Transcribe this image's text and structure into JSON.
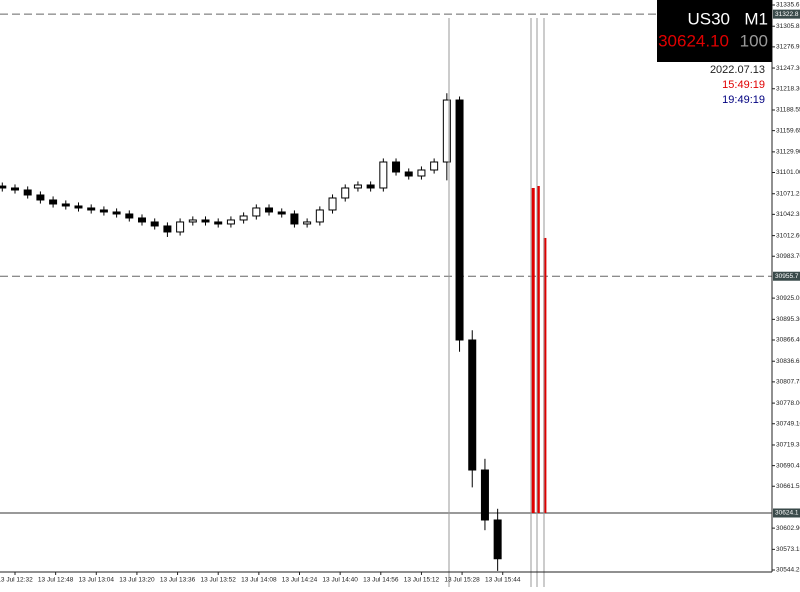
{
  "chart_data": {
    "type": "candlestick",
    "symbol": "US30",
    "timeframe": "M1",
    "price_label": "30624.10",
    "spread": "100",
    "date": "2022.07.13",
    "time_local": "15:49:19",
    "time_server": "19:49:19",
    "up_color": "#ffffff",
    "down_color": "#000000",
    "xlim": [
      -5.9,
      298
    ],
    "ylim": [
      30541.45,
      31342.6
    ],
    "xticks": [
      {
        "value": 0,
        "label": "13 Jul 12:32"
      },
      {
        "value": 16,
        "label": "13 Jul 12:48"
      },
      {
        "value": 32,
        "label": "13 Jul 13:04"
      },
      {
        "value": 48,
        "label": "13 Jul 13:20"
      },
      {
        "value": 64,
        "label": "13 Jul 13:36"
      },
      {
        "value": 80,
        "label": "13 Jul 13:52"
      },
      {
        "value": 96,
        "label": "13 Jul 14:08"
      },
      {
        "value": 112,
        "label": "13 Jul 14:24"
      },
      {
        "value": 128,
        "label": "13 Jul 14:40"
      },
      {
        "value": 144,
        "label": "13 Jul 14:56"
      },
      {
        "value": 160,
        "label": "13 Jul 15:12"
      },
      {
        "value": 176,
        "label": "13 Jul 15:28"
      },
      {
        "value": 192,
        "label": "13 Jul 15:44"
      }
    ],
    "yticks": [
      31335.6,
      31305.85,
      31276.95,
      {
        "value": 31247.3,
        "label": "31247.30"
      },
      {
        "value": 31218.3,
        "label": "31218.30"
      },
      31188.55,
      31159.65,
      {
        "value": 31129.9,
        "label": "31129.90"
      },
      {
        "value": 31101,
        "label": "31101.00"
      },
      31071.25,
      31042.35,
      {
        "value": 31012.6,
        "label": "31012.60"
      },
      {
        "value": 30983.7,
        "label": "30983.70"
      },
      30925.05,
      {
        "value": 30895.3,
        "label": "30895.30"
      },
      {
        "value": 30866.4,
        "label": "30866.40"
      },
      30836.65,
      30807.75,
      {
        "value": 30778,
        "label": "30778.00"
      },
      {
        "value": 30749.1,
        "label": "30749.10"
      },
      30719.35,
      30690.45,
      30661.55,
      {
        "value": 30602.9,
        "label": "30602.90"
      },
      30573.15,
      30544.25
    ],
    "levels": [
      {
        "value": 31322.8,
        "style": "dashed"
      },
      {
        "value": 30955.7,
        "style": "dashed"
      },
      {
        "value": 30624.1,
        "style": "solid"
      }
    ],
    "x": [
      -5,
      0,
      5,
      10,
      15,
      20,
      25,
      30,
      35,
      40,
      45,
      50,
      55,
      60,
      65,
      70,
      75,
      80,
      85,
      90,
      95,
      100,
      105,
      110,
      115,
      120,
      125,
      130,
      135,
      140,
      145,
      150,
      155,
      160,
      165,
      170,
      175,
      180,
      185,
      190
    ],
    "open": [
      31082.0,
      31079.3,
      31076.5,
      31069.5,
      31062.5,
      31056.9,
      31054.1,
      31051.3,
      31048.5,
      31045.7,
      31042.9,
      31037.3,
      31031.7,
      31026.1,
      31017.7,
      31031.7,
      31034.5,
      31031.7,
      31028.9,
      31034.5,
      31040.1,
      31051.3,
      31045.7,
      31042.9,
      31028.9,
      31031.7,
      31048.5,
      31065.3,
      31079.3,
      31083.5,
      31079.3,
      31115.7,
      31101.7,
      31096.1,
      31104.5,
      31115.7,
      31202.5,
      30866.4,
      30684.3,
      30614.3
    ],
    "high": [
      31087.0,
      31084.3,
      31081.5,
      31074.5,
      31067.5,
      31061.9,
      31059.1,
      31056.3,
      31053.5,
      31050.7,
      31047.9,
      31042.3,
      31036.7,
      31031.1,
      31036.7,
      31039.5,
      31039.5,
      31036.7,
      31039.5,
      31045.1,
      31056.3,
      31056.3,
      31050.7,
      31047.9,
      31036.7,
      31053.5,
      31070.3,
      31084.3,
      31088.5,
      31088.5,
      31120.7,
      31120.7,
      31106.7,
      31109.5,
      31120.7,
      31212.0,
      31207.5,
      30880.0,
      30700.0,
      30630.0
    ],
    "low": [
      31074.3,
      31071.5,
      31064.5,
      31057.5,
      31051.9,
      31049.1,
      31046.3,
      31043.5,
      31040.7,
      31037.9,
      31032.3,
      31026.7,
      31021.1,
      31010.7,
      31012.7,
      31026.7,
      31026.7,
      31023.9,
      31023.9,
      31029.5,
      31035.1,
      31040.7,
      31037.9,
      31023.9,
      31023.9,
      31026.7,
      31043.5,
      31060.3,
      31074.3,
      31074.3,
      31074.3,
      31096.7,
      31091.1,
      31091.1,
      31099.5,
      31090.0,
      30850.0,
      30660.0,
      30600.0,
      30543.0
    ],
    "close": [
      31079.3,
      31076.5,
      31069.5,
      31062.5,
      31056.9,
      31054.1,
      31051.3,
      31048.5,
      31045.7,
      31042.9,
      31037.3,
      31031.7,
      31026.1,
      31017.7,
      31031.7,
      31034.5,
      31031.7,
      31028.9,
      31034.5,
      31040.1,
      31051.3,
      31045.7,
      31042.9,
      31028.9,
      31031.7,
      31048.5,
      31065.3,
      31079.3,
      31083.5,
      31079.3,
      31115.7,
      31101.7,
      31096.1,
      31104.5,
      31115.7,
      31202.5,
      30866.4,
      30684.3,
      30614.3,
      30560.0
    ],
    "signal_bars": {
      "color": "#e00000",
      "x": [
        204,
        206,
        208.6
      ],
      "values": [
        31079.3,
        31082.1,
        31009.3
      ]
    }
  }
}
